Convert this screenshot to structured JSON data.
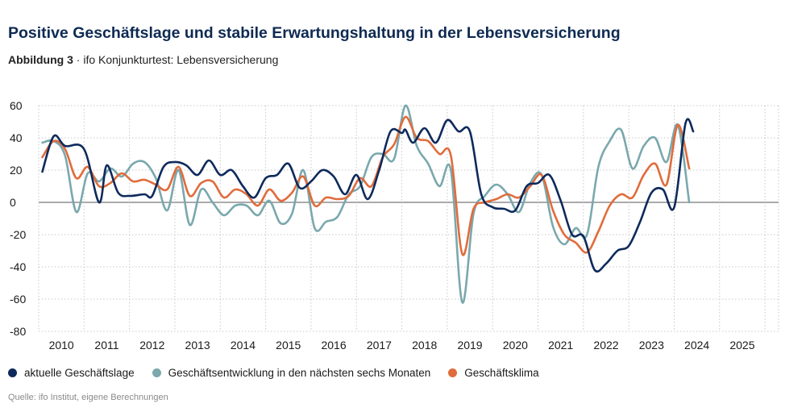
{
  "header": {
    "title": "Positive Geschäftslage und stabile Erwartungshaltung in der Lebensversicherung",
    "subtitle_bold": "Abbildung 3",
    "subtitle_rest": " · ifo Konjunkturtest: Lebensversicherung"
  },
  "source": "Quelle: ifo Institut, eigene Berechnungen",
  "chart_data": {
    "type": "line",
    "ylim": [
      -80,
      60
    ],
    "yticks": [
      60,
      40,
      20,
      0,
      -20,
      -40,
      -60,
      -80
    ],
    "xlim": [
      2009.5,
      2025.8
    ],
    "xticks": [
      2010,
      2011,
      2012,
      2013,
      2014,
      2015,
      2016,
      2017,
      2018,
      2019,
      2020,
      2021,
      2022,
      2023,
      2024,
      2025
    ],
    "grid": true,
    "legend_position": "bottom-left",
    "series": [
      {
        "name": "aktuelle Geschäftslage",
        "color": "#0e2a5c",
        "points": [
          [
            2009.58,
            19
          ],
          [
            2009.83,
            41
          ],
          [
            2010.08,
            35
          ],
          [
            2010.5,
            33
          ],
          [
            2010.83,
            0
          ],
          [
            2011.0,
            23
          ],
          [
            2011.25,
            6
          ],
          [
            2011.5,
            4
          ],
          [
            2011.83,
            5
          ],
          [
            2012.0,
            4
          ],
          [
            2012.25,
            22
          ],
          [
            2012.5,
            25
          ],
          [
            2012.75,
            23
          ],
          [
            2013.0,
            17
          ],
          [
            2013.25,
            26
          ],
          [
            2013.5,
            17
          ],
          [
            2013.75,
            20
          ],
          [
            2014.0,
            10
          ],
          [
            2014.25,
            3
          ],
          [
            2014.5,
            15
          ],
          [
            2014.75,
            17
          ],
          [
            2015.0,
            24
          ],
          [
            2015.25,
            9
          ],
          [
            2015.5,
            13
          ],
          [
            2015.75,
            20
          ],
          [
            2016.0,
            16
          ],
          [
            2016.25,
            5
          ],
          [
            2016.5,
            17
          ],
          [
            2016.75,
            2
          ],
          [
            2017.0,
            20
          ],
          [
            2017.25,
            44
          ],
          [
            2017.5,
            43
          ],
          [
            2017.58,
            45
          ],
          [
            2017.75,
            37
          ],
          [
            2018.0,
            46
          ],
          [
            2018.25,
            37
          ],
          [
            2018.5,
            51
          ],
          [
            2018.75,
            44
          ],
          [
            2019.0,
            44
          ],
          [
            2019.25,
            5
          ],
          [
            2019.5,
            -3
          ],
          [
            2019.75,
            -4
          ],
          [
            2020.0,
            -5
          ],
          [
            2020.25,
            10
          ],
          [
            2020.5,
            12
          ],
          [
            2020.75,
            17
          ],
          [
            2021.0,
            1
          ],
          [
            2021.25,
            -20
          ],
          [
            2021.5,
            -21
          ],
          [
            2021.75,
            -42
          ],
          [
            2022.0,
            -38
          ],
          [
            2022.25,
            -30
          ],
          [
            2022.5,
            -27
          ],
          [
            2022.75,
            -12
          ],
          [
            2023.0,
            6
          ],
          [
            2023.25,
            8
          ],
          [
            2023.5,
            -3
          ],
          [
            2023.75,
            49
          ],
          [
            2023.92,
            44
          ]
        ]
      },
      {
        "name": "Geschäftsentwicklung in den nächsten sechs Monaten",
        "color": "#7aa8ad",
        "points": [
          [
            2009.58,
            37
          ],
          [
            2009.83,
            38
          ],
          [
            2010.08,
            29
          ],
          [
            2010.33,
            -6
          ],
          [
            2010.58,
            18
          ],
          [
            2010.83,
            13
          ],
          [
            2011.08,
            21
          ],
          [
            2011.33,
            16
          ],
          [
            2011.58,
            24
          ],
          [
            2011.83,
            25
          ],
          [
            2012.08,
            15
          ],
          [
            2012.33,
            -5
          ],
          [
            2012.58,
            20
          ],
          [
            2012.83,
            -14
          ],
          [
            2013.08,
            8
          ],
          [
            2013.33,
            0
          ],
          [
            2013.58,
            -8
          ],
          [
            2013.83,
            -2
          ],
          [
            2014.08,
            -2
          ],
          [
            2014.33,
            -8
          ],
          [
            2014.58,
            1
          ],
          [
            2014.83,
            -13
          ],
          [
            2015.08,
            -7
          ],
          [
            2015.33,
            20
          ],
          [
            2015.58,
            -16
          ],
          [
            2015.83,
            -12
          ],
          [
            2016.08,
            -9
          ],
          [
            2016.33,
            5
          ],
          [
            2016.58,
            10
          ],
          [
            2016.83,
            28
          ],
          [
            2017.08,
            30
          ],
          [
            2017.33,
            27
          ],
          [
            2017.58,
            60
          ],
          [
            2017.83,
            35
          ],
          [
            2018.08,
            24
          ],
          [
            2018.33,
            10
          ],
          [
            2018.58,
            20
          ],
          [
            2018.83,
            -62
          ],
          [
            2019.08,
            -7
          ],
          [
            2019.33,
            4
          ],
          [
            2019.58,
            11
          ],
          [
            2019.83,
            5
          ],
          [
            2020.08,
            -6
          ],
          [
            2020.33,
            12
          ],
          [
            2020.58,
            17
          ],
          [
            2020.83,
            -15
          ],
          [
            2021.08,
            -26
          ],
          [
            2021.33,
            -16
          ],
          [
            2021.58,
            -20
          ],
          [
            2021.83,
            22
          ],
          [
            2022.08,
            38
          ],
          [
            2022.33,
            45
          ],
          [
            2022.58,
            21
          ],
          [
            2022.83,
            35
          ],
          [
            2023.08,
            40
          ],
          [
            2023.33,
            25
          ],
          [
            2023.58,
            48
          ],
          [
            2023.83,
            0
          ]
        ]
      },
      {
        "name": "Geschäftsklima",
        "color": "#e06c3c",
        "points": [
          [
            2009.58,
            28
          ],
          [
            2009.83,
            38
          ],
          [
            2010.08,
            33
          ],
          [
            2010.33,
            15
          ],
          [
            2010.58,
            22
          ],
          [
            2010.83,
            10
          ],
          [
            2011.08,
            12
          ],
          [
            2011.33,
            18
          ],
          [
            2011.58,
            13
          ],
          [
            2011.83,
            14
          ],
          [
            2012.08,
            11
          ],
          [
            2012.33,
            8
          ],
          [
            2012.58,
            22
          ],
          [
            2012.83,
            4
          ],
          [
            2013.08,
            12
          ],
          [
            2013.33,
            13
          ],
          [
            2013.58,
            3
          ],
          [
            2013.83,
            8
          ],
          [
            2014.08,
            5
          ],
          [
            2014.33,
            -2
          ],
          [
            2014.58,
            8
          ],
          [
            2014.83,
            1
          ],
          [
            2015.08,
            6
          ],
          [
            2015.33,
            16
          ],
          [
            2015.58,
            -2
          ],
          [
            2015.83,
            3
          ],
          [
            2016.08,
            2
          ],
          [
            2016.33,
            4
          ],
          [
            2016.58,
            15
          ],
          [
            2016.83,
            10
          ],
          [
            2017.08,
            28
          ],
          [
            2017.33,
            36
          ],
          [
            2017.58,
            53
          ],
          [
            2017.83,
            40
          ],
          [
            2018.08,
            38
          ],
          [
            2018.33,
            30
          ],
          [
            2018.58,
            29
          ],
          [
            2018.83,
            -32
          ],
          [
            2019.08,
            -4
          ],
          [
            2019.33,
            0
          ],
          [
            2019.58,
            2
          ],
          [
            2019.83,
            5
          ],
          [
            2020.08,
            3
          ],
          [
            2020.33,
            10
          ],
          [
            2020.58,
            17
          ],
          [
            2020.83,
            -5
          ],
          [
            2021.08,
            -20
          ],
          [
            2021.33,
            -25
          ],
          [
            2021.58,
            -31
          ],
          [
            2021.83,
            -18
          ],
          [
            2022.08,
            -2
          ],
          [
            2022.33,
            5
          ],
          [
            2022.58,
            3
          ],
          [
            2022.83,
            17
          ],
          [
            2023.08,
            24
          ],
          [
            2023.33,
            11
          ],
          [
            2023.58,
            48
          ],
          [
            2023.83,
            21
          ]
        ]
      }
    ]
  }
}
